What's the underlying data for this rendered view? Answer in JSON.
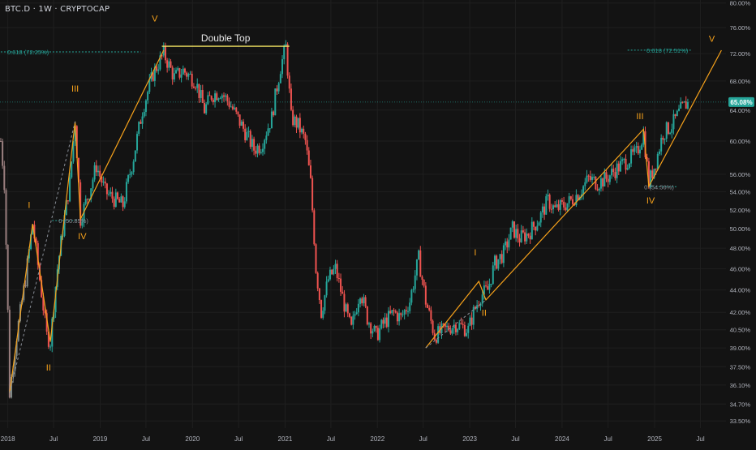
{
  "header": {
    "symbol_title": "BTC.D · 1W · CRYPTOCAP"
  },
  "colors": {
    "background": "#131313",
    "grid": "#1f1f1f",
    "up": "#26a69a",
    "down": "#ef5350",
    "up_faded": "#7f8a88",
    "down_faded": "#9a7f7f",
    "elliott": "#f7a21b",
    "fib": "#26a69a",
    "double_top_line": "#f5e663",
    "price_badge": "#26a69a",
    "axis_text": "#b2b5be"
  },
  "chart_data": {
    "type": "candlestick",
    "x_unit": "date",
    "y_scale": "log",
    "y_unit": "%",
    "xlim": [
      "2017-12-01",
      "2025-10-10"
    ],
    "ylim": [
      33.0,
      80.5
    ],
    "x_ticks": [
      "2018",
      "Jul",
      "2019",
      "Jul",
      "2020",
      "Jul",
      "2021",
      "Jul",
      "2022",
      "Jul",
      "2023",
      "Jul",
      "2024",
      "Jul",
      "2025",
      "Jul"
    ],
    "x_tick_dates": [
      "2018-01-01",
      "2018-07-01",
      "2019-01-01",
      "2019-07-01",
      "2020-01-01",
      "2020-07-01",
      "2021-01-01",
      "2021-07-01",
      "2022-01-01",
      "2022-07-01",
      "2023-01-01",
      "2023-07-01",
      "2024-01-01",
      "2024-07-01",
      "2025-01-01",
      "2025-07-01"
    ],
    "y_ticks": [
      "80.00%",
      "76.00%",
      "72.00%",
      "68.00%",
      "64.00%",
      "60.00%",
      "56.00%",
      "54.00%",
      "52.00%",
      "50.00%",
      "48.00%",
      "46.00%",
      "44.00%",
      "42.00%",
      "40.50%",
      "39.00%",
      "37.50%",
      "36.10%",
      "34.70%",
      "33.50%"
    ],
    "y_tick_values": [
      80,
      76,
      72,
      68,
      64,
      60,
      56,
      54,
      52,
      50,
      48,
      46,
      44,
      42,
      40.5,
      39,
      37.5,
      36.1,
      34.7,
      33.5
    ],
    "last_price": {
      "label": "65.08%",
      "value": 65.08
    },
    "price_path": [
      [
        "2017-12-04",
        60.0
      ],
      [
        "2017-12-18",
        55.0
      ],
      [
        "2018-01-08",
        35.5
      ],
      [
        "2018-02-05",
        40.0
      ],
      [
        "2018-03-12",
        45.0
      ],
      [
        "2018-04-09",
        50.5
      ],
      [
        "2018-05-07",
        45.0
      ],
      [
        "2018-06-04",
        40.0
      ],
      [
        "2018-06-18",
        39.5
      ],
      [
        "2018-07-16",
        46.0
      ],
      [
        "2018-09-03",
        55.0
      ],
      [
        "2018-09-24",
        62.5
      ],
      [
        "2018-10-15",
        51.0
      ],
      [
        "2018-11-19",
        54.0
      ],
      [
        "2018-12-17",
        57.0
      ],
      [
        "2019-01-21",
        54.0
      ],
      [
        "2019-03-04",
        53.0
      ],
      [
        "2019-04-01",
        52.5
      ],
      [
        "2019-05-13",
        58.0
      ],
      [
        "2019-06-17",
        64.0
      ],
      [
        "2019-07-29",
        69.0
      ],
      [
        "2019-09-09",
        72.0
      ],
      [
        "2019-10-21",
        68.5
      ],
      [
        "2019-11-25",
        69.5
      ],
      [
        "2020-01-13",
        68.0
      ],
      [
        "2020-02-17",
        64.0
      ],
      [
        "2020-03-16",
        66.0
      ],
      [
        "2020-04-20",
        66.5
      ],
      [
        "2020-05-25",
        65.0
      ],
      [
        "2020-07-13",
        62.0
      ],
      [
        "2020-08-31",
        59.0
      ],
      [
        "2020-09-28",
        59.5
      ],
      [
        "2020-11-09",
        63.0
      ],
      [
        "2020-12-14",
        70.0
      ],
      [
        "2021-01-04",
        73.0
      ],
      [
        "2021-01-25",
        63.0
      ],
      [
        "2021-02-22",
        62.0
      ],
      [
        "2021-03-22",
        60.0
      ],
      [
        "2021-04-12",
        55.0
      ],
      [
        "2021-05-03",
        46.0
      ],
      [
        "2021-05-24",
        42.0
      ],
      [
        "2021-06-21",
        45.0
      ],
      [
        "2021-07-19",
        46.0
      ],
      [
        "2021-08-30",
        42.0
      ],
      [
        "2021-09-20",
        40.5
      ],
      [
        "2021-10-25",
        44.0
      ],
      [
        "2021-11-22",
        41.5
      ],
      [
        "2021-12-27",
        40.0
      ],
      [
        "2022-01-24",
        41.0
      ],
      [
        "2022-03-07",
        42.0
      ],
      [
        "2022-04-04",
        41.5
      ],
      [
        "2022-05-09",
        43.0
      ],
      [
        "2022-06-13",
        47.0
      ],
      [
        "2022-07-11",
        43.0
      ],
      [
        "2022-08-15",
        40.0
      ],
      [
        "2022-09-26",
        40.5
      ],
      [
        "2022-11-07",
        41.0
      ],
      [
        "2022-12-26",
        40.5
      ],
      [
        "2023-01-16",
        42.0
      ],
      [
        "2023-02-13",
        43.5
      ],
      [
        "2023-03-13",
        44.0
      ],
      [
        "2023-04-10",
        46.5
      ],
      [
        "2023-05-15",
        47.5
      ],
      [
        "2023-06-19",
        50.0
      ],
      [
        "2023-07-17",
        49.0
      ],
      [
        "2023-08-21",
        49.5
      ],
      [
        "2023-10-02",
        51.0
      ],
      [
        "2023-11-06",
        53.0
      ],
      [
        "2023-12-04",
        52.0
      ],
      [
        "2024-01-08",
        52.5
      ],
      [
        "2024-02-05",
        53.0
      ],
      [
        "2024-03-11",
        54.0
      ],
      [
        "2024-04-15",
        55.5
      ],
      [
        "2024-05-20",
        55.0
      ],
      [
        "2024-06-24",
        55.5
      ],
      [
        "2024-07-29",
        56.5
      ],
      [
        "2024-09-09",
        57.5
      ],
      [
        "2024-10-21",
        58.5
      ],
      [
        "2024-11-18",
        61.0
      ],
      [
        "2024-12-09",
        55.0
      ],
      [
        "2025-01-06",
        57.5
      ],
      [
        "2025-02-03",
        61.0
      ],
      [
        "2025-03-10",
        62.0
      ],
      [
        "2025-04-14",
        64.0
      ],
      [
        "2025-05-12",
        65.08
      ]
    ],
    "wave_labels": [
      {
        "text": "I",
        "date": "2018-03-26",
        "value": 52.2
      },
      {
        "text": "II",
        "date": "2018-06-11",
        "value": 37.2
      },
      {
        "text": "III",
        "date": "2018-09-24",
        "value": 66.5
      },
      {
        "text": "IV",
        "date": "2018-10-22",
        "value": 48.9
      },
      {
        "text": "V",
        "date": "2019-08-05",
        "value": 77.0
      },
      {
        "text": "I",
        "date": "2023-01-23",
        "value": 47.3
      },
      {
        "text": "II",
        "date": "2023-02-27",
        "value": 41.7
      },
      {
        "text": "III",
        "date": "2024-11-04",
        "value": 62.8
      },
      {
        "text": "IV",
        "date": "2024-12-16",
        "value": 52.7
      },
      {
        "text": "V",
        "date": "2025-08-15",
        "value": 73.8
      }
    ],
    "wave_paths": [
      [
        [
          "2018-01-08",
          35.5
        ],
        [
          "2018-04-09",
          50.5
        ],
        [
          "2018-06-18",
          39.5
        ],
        [
          "2018-09-24",
          62.5
        ],
        [
          "2018-10-15",
          51.0
        ],
        [
          "2019-09-09",
          72.5
        ]
      ],
      [
        [
          "2022-07-11",
          39.0
        ],
        [
          "2023-02-06",
          44.8
        ],
        [
          "2023-03-06",
          43.1
        ],
        [
          "2024-11-18",
          61.5
        ],
        [
          "2024-12-09",
          54.6
        ],
        [
          "2025-09-22",
          72.5
        ]
      ]
    ],
    "wave_dashed_paths": [
      [
        [
          "2018-01-08",
          35.5
        ],
        [
          "2018-09-24",
          62.5
        ]
      ],
      [
        [
          "2022-07-11",
          39.0
        ],
        [
          "2023-03-06",
          43.1
        ]
      ]
    ],
    "fib_levels": [
      {
        "label": "0.618 (72.25%)",
        "value": 72.25,
        "from": "2017-12-04",
        "to": "2019-06-10",
        "label_side": "left"
      },
      {
        "label": "0 (50.85%)",
        "value": 50.85,
        "from": "2018-06-25",
        "to": "2018-10-08",
        "label_side": "left"
      },
      {
        "label": "0.618 (72.51%)",
        "value": 72.51,
        "from": "2024-09-16",
        "to": "2025-05-26",
        "label_side": "right"
      },
      {
        "label": "0 (54.56%)",
        "value": 54.56,
        "from": "2024-12-09",
        "to": "2025-03-31",
        "label_side": "right"
      }
    ],
    "double_top": {
      "label": "Double Top",
      "value": 73.1,
      "from": "2019-09-02",
      "to": "2021-01-18"
    },
    "grid": true
  }
}
